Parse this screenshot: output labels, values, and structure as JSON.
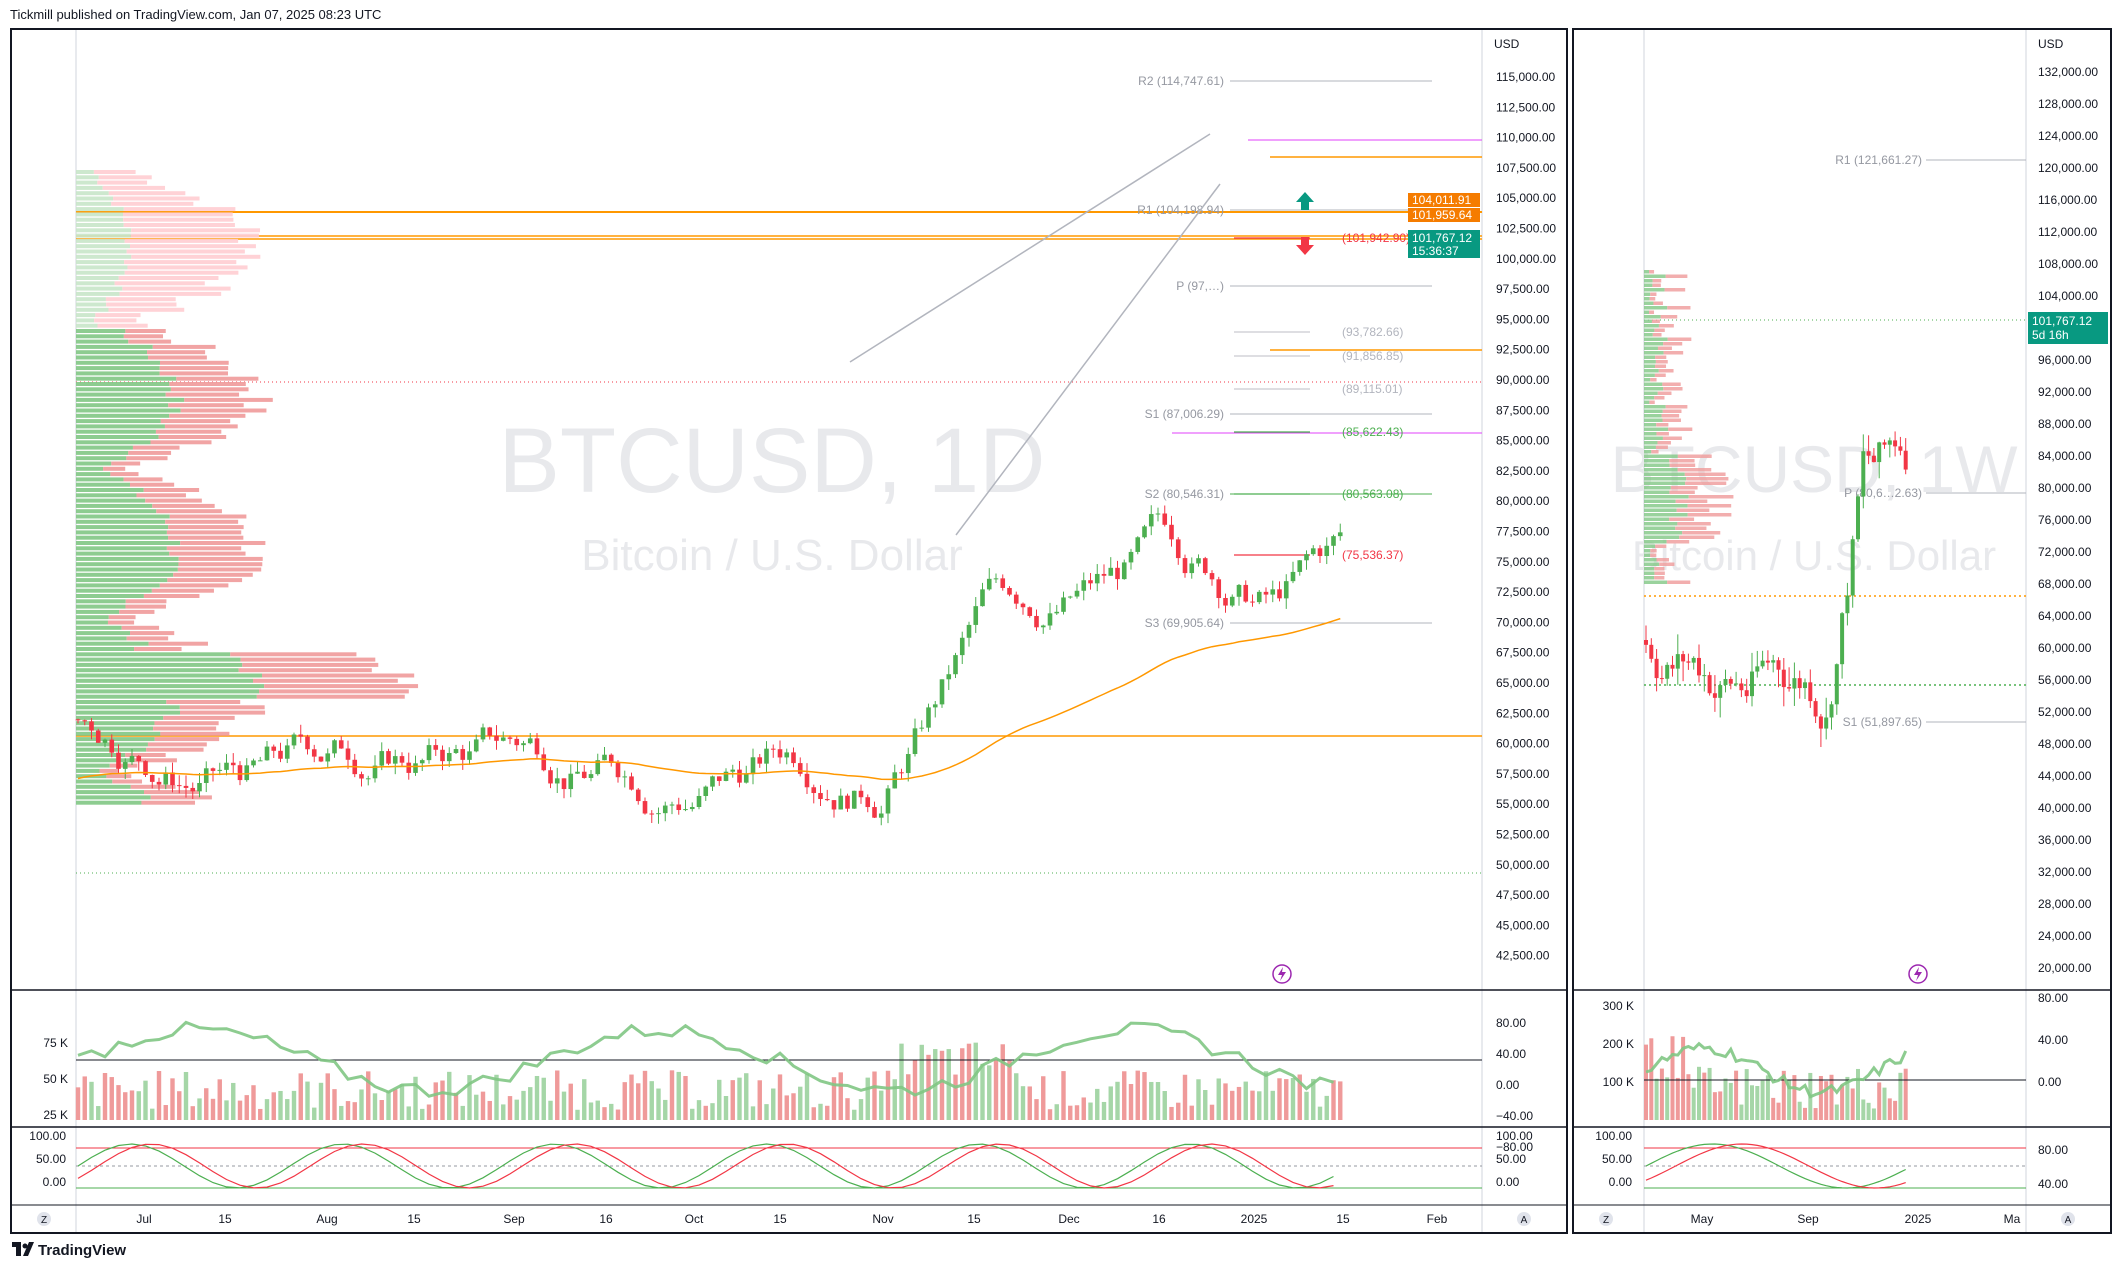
{
  "header": {
    "published": "Tickmill published on TradingView.com, Jan 07, 2025 08:23 UTC"
  },
  "footer": {
    "brand": "TradingView"
  },
  "colors": {
    "up": "#4caf50",
    "down": "#f23645",
    "orange": "#ff9800",
    "magenta": "#e040fb",
    "price_tag": "#089981",
    "hl_tag": "#f57c00",
    "grid": "#f0f3fa"
  },
  "daily": {
    "symbol_watermark": "BTCUSD, 1D",
    "name_watermark": "Bitcoin / U.S. Dollar",
    "currency": "USD",
    "price_axis": [
      "115,000.00",
      "112,500.00",
      "110,000.00",
      "107,500.00",
      "105,000.00",
      "102,500.00",
      "100,000.00",
      "97,500.00",
      "95,000.00",
      "92,500.00",
      "90,000.00",
      "87,500.00",
      "85,000.00",
      "82,500.00",
      "80,000.00",
      "77,500.00",
      "75,000.00",
      "72,500.00",
      "70,000.00",
      "67,500.00",
      "65,000.00",
      "62,500.00",
      "60,000.00",
      "57,500.00",
      "55,000.00",
      "52,500.00",
      "50,000.00",
      "47,500.00",
      "45,000.00",
      "42,500.00"
    ],
    "time_axis": [
      "Jul",
      "15",
      "Aug",
      "15",
      "Sep",
      "16",
      "Oct",
      "15",
      "Nov",
      "15",
      "Dec",
      "16",
      "2025",
      "15",
      "Feb"
    ],
    "pivot_labels": [
      "R2 (114,747.61)",
      "R1 (104,198.94)",
      "P (97,…)",
      "S1 (87,006.29)",
      "S2 (80,546.31)",
      "S3 (69,905.64)"
    ],
    "level_labels": [
      "(101,942.90)",
      "(93,782.66)",
      "(91,856.85)",
      "(89,115.01)",
      "(85,622.43)",
      "(80,563.08)",
      "(75,536.37)"
    ],
    "tags": {
      "high": "104,011.91",
      "mid": "101,959.64",
      "last": "101,767.12",
      "countdown": "15:36:37"
    },
    "volume_axis": [
      "75 K",
      "50 K",
      "25 K"
    ],
    "rsi_axis": [
      "80.00",
      "40.00",
      "0.00",
      "−40.00",
      "−80.00"
    ],
    "stoch_axis_left": [
      "100.00",
      "50.00",
      "0.00"
    ],
    "stoch_axis_right": [
      "100.00",
      "50.00",
      "0.00"
    ],
    "axis_buttons": {
      "z": "Z",
      "a": "A"
    }
  },
  "weekly": {
    "symbol_watermark": "BTCUSD, 1W",
    "name_watermark": "Bitcoin / U.S. Dollar",
    "currency": "USD",
    "price_axis": [
      "132,000.00",
      "128,000.00",
      "124,000.00",
      "120,000.00",
      "116,000.00",
      "112,000.00",
      "108,000.00",
      "104,000.00",
      "100,000.00",
      "96,000.00",
      "92,000.00",
      "88,000.00",
      "84,000.00",
      "80,000.00",
      "76,000.00",
      "72,000.00",
      "68,000.00",
      "64,000.00",
      "60,000.00",
      "56,000.00",
      "52,000.00",
      "48,000.00",
      "44,000.00",
      "40,000.00",
      "36,000.00",
      "32,000.00",
      "28,000.00",
      "24,000.00",
      "20,000.00"
    ],
    "time_axis": [
      "May",
      "Sep",
      "2025",
      "Ma"
    ],
    "pivot_labels": [
      "R1 (121,661.27)",
      "P (80,6…2.63)",
      "S1 (51,897.65)"
    ],
    "tags": {
      "last": "101,767.12",
      "countdown": "5d 16h"
    },
    "volume_axis": [
      "300 K",
      "200 K",
      "100 K"
    ],
    "rsi_axis": [
      "80.00",
      "40.00",
      "0.00"
    ],
    "stoch_axis_left": [
      "100.00",
      "50.00",
      "0.00"
    ],
    "stoch_axis_right": [
      "80.00",
      "40.00"
    ],
    "axis_buttons": {
      "z": "Z",
      "a": "A"
    }
  }
}
